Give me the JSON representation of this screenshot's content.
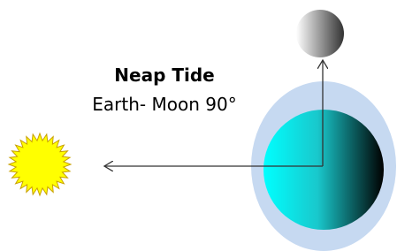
{
  "title": "Neap Tide",
  "subtitle": "Earth- Moon 90°"
}
